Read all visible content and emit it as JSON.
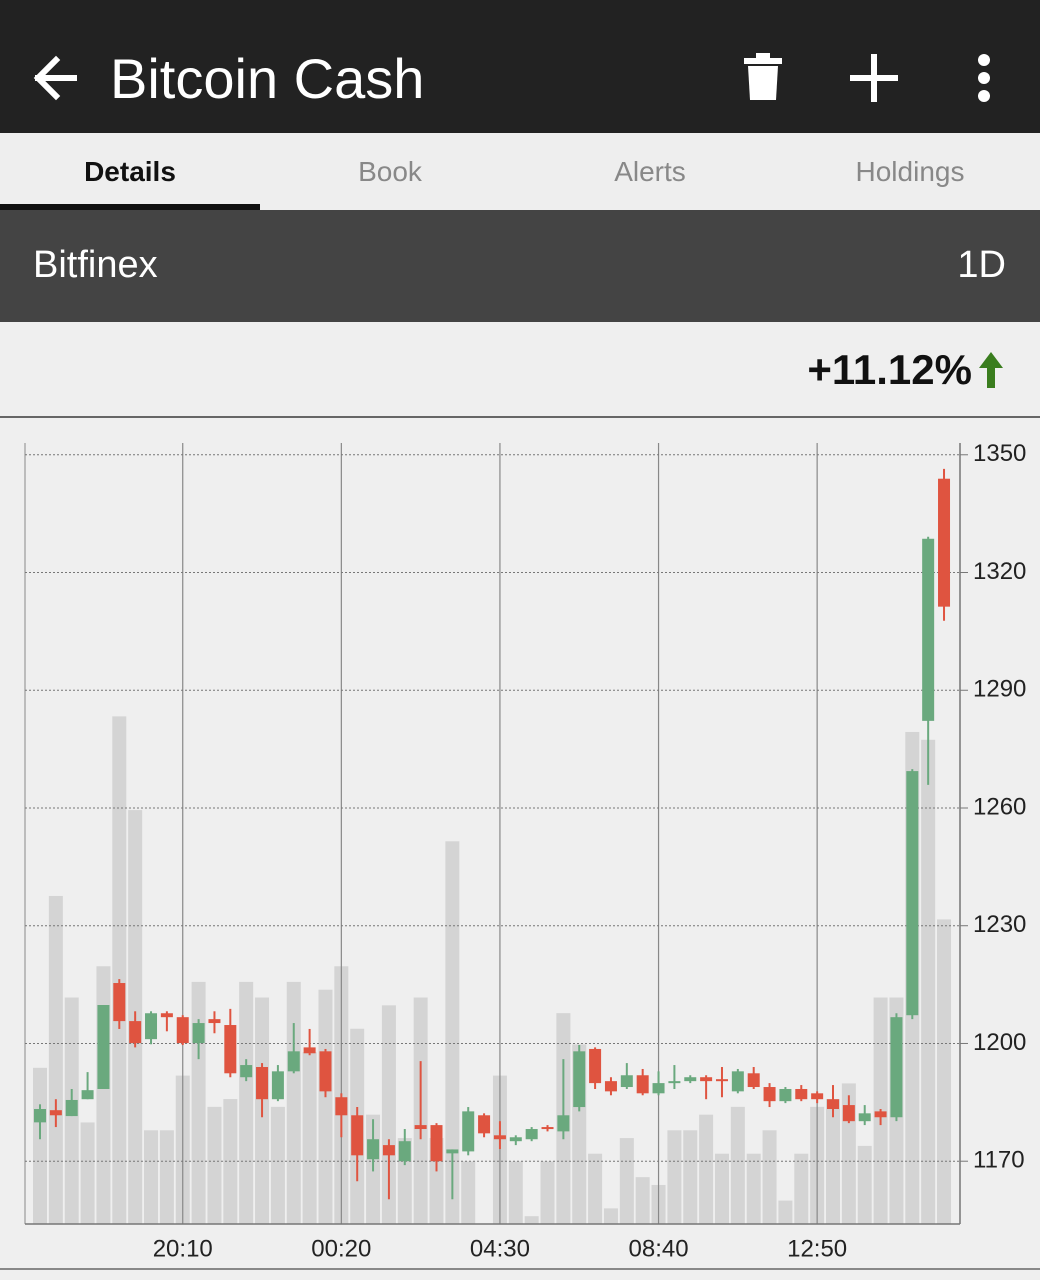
{
  "header": {
    "title": "Bitcoin Cash"
  },
  "tabs": [
    "Details",
    "Book",
    "Alerts",
    "Holdings"
  ],
  "exchange": "Bitfinex",
  "period": "1D",
  "change": "+11.12%",
  "chart_data": {
    "type": "candlestick",
    "categories": [
      null,
      null,
      null,
      null,
      null,
      null,
      null,
      null,
      null,
      "20:10",
      null,
      null,
      null,
      null,
      null,
      null,
      null,
      null,
      null,
      "00:20",
      null,
      null,
      null,
      null,
      null,
      null,
      null,
      null,
      null,
      "04:30",
      null,
      null,
      null,
      null,
      null,
      null,
      null,
      null,
      null,
      "08:40",
      null,
      null,
      null,
      null,
      null,
      null,
      null,
      null,
      null,
      "12:50",
      null,
      null,
      null,
      null,
      null,
      null,
      null,
      null
    ],
    "open": [
      1179.9,
      1183,
      1181.5,
      1185.8,
      1188.4,
      1215.4,
      1205.7,
      1201.1,
      1207.7,
      1206.7,
      1200.1,
      1206.2,
      1204.7,
      1191.4,
      1194,
      1185.8,
      1192.9,
      1199,
      1198,
      1186.3,
      1181.7,
      1170.5,
      1174.1,
      1170,
      1179.2,
      1179.2,
      1172,
      1172.5,
      1181.7,
      1176.6,
      1175.1,
      1175.6,
      1178.7,
      1177.6,
      1183.8,
      1198.6,
      1190.4,
      1188.9,
      1191.9,
      1187.3,
      1189.9,
      1190.4,
      1191.4,
      1190.9,
      1187.8,
      1192.4,
      1188.9,
      1185.3,
      1188.4,
      1187.3,
      1185.8,
      1184.3,
      1180.2,
      1182.7,
      1181.2,
      1207.2,
      1282.2,
      1343.9
    ],
    "high": [
      1184.5,
      1185.8,
      1188.4,
      1192.7,
      1209.8,
      1216.4,
      1208.2,
      1208.2,
      1208.2,
      1207.2,
      1206.2,
      1208.2,
      1208.8,
      1196,
      1195,
      1194.5,
      1205.2,
      1203.7,
      1198.6,
      1187.3,
      1183.8,
      1180.7,
      1175.6,
      1178.2,
      1195.5,
      1179.7,
      1173,
      1183.8,
      1182.2,
      1180.2,
      1176.6,
      1178.7,
      1179.2,
      1196,
      1199.6,
      1199,
      1191.4,
      1195,
      1193.5,
      1192.9,
      1194.5,
      1191.9,
      1191.9,
      1194,
      1193.5,
      1194,
      1189.9,
      1188.9,
      1189.4,
      1187.8,
      1189.4,
      1186.8,
      1184.3,
      1183.3,
      1207.7,
      1269.9,
      1329.1,
      1346.4
    ],
    "low": [
      1175.6,
      1178.7,
      1181.5,
      1185.8,
      1188.4,
      1203.7,
      1199,
      1199.8,
      1203.1,
      1199.6,
      1196,
      1202.6,
      1191.4,
      1190.4,
      1181.2,
      1185.3,
      1192.4,
      1197,
      1186.3,
      1176.1,
      1164.9,
      1167.4,
      1160.3,
      1169,
      1175.6,
      1167.4,
      1160.3,
      1171.5,
      1176.1,
      1173.1,
      1174.1,
      1175.1,
      1177.6,
      1175.6,
      1182.7,
      1188.4,
      1186.8,
      1188.4,
      1186.8,
      1186.8,
      1188.4,
      1189.9,
      1185.8,
      1186.3,
      1187.3,
      1188.4,
      1183.8,
      1184.8,
      1185.3,
      1184.8,
      1181.2,
      1179.7,
      1179.2,
      1179.2,
      1180.2,
      1206.2,
      1265.9,
      1307.7
    ],
    "close": [
      1183.3,
      1181.7,
      1185.6,
      1188.1,
      1209.8,
      1205.7,
      1200.1,
      1207.7,
      1206.7,
      1200.1,
      1205.2,
      1205.2,
      1192.4,
      1194.5,
      1185.8,
      1192.9,
      1198,
      1197.5,
      1187.8,
      1181.7,
      1171.5,
      1175.6,
      1171.5,
      1175.1,
      1178.2,
      1170,
      1173,
      1182.7,
      1177.1,
      1175.6,
      1176.1,
      1178.2,
      1178.2,
      1181.7,
      1198,
      1189.9,
      1187.8,
      1191.9,
      1187.3,
      1189.9,
      1190.4,
      1191.4,
      1190.4,
      1190.4,
      1192.9,
      1188.9,
      1185.3,
      1188.4,
      1185.8,
      1185.8,
      1183.3,
      1180.2,
      1182.2,
      1181.2,
      1206.7,
      1269.4,
      1328.6,
      1311.3
    ],
    "up_color": "#6aa97e",
    "down_color": "#df5440",
    "volume": {
      "axis": "y2",
      "color": "#d4d4d4",
      "values": [
        20,
        42,
        29,
        13,
        33,
        65,
        53,
        12,
        12,
        19,
        31,
        15,
        16,
        31,
        29,
        15,
        31,
        22,
        30,
        33,
        25,
        14,
        28,
        11,
        29,
        11,
        49,
        8,
        0,
        19,
        8,
        1,
        8,
        27,
        23,
        9,
        2,
        11,
        6,
        5,
        12,
        12,
        14,
        9,
        15,
        9,
        12,
        3,
        9,
        15,
        16,
        18,
        10,
        29,
        29,
        63,
        62,
        39
      ]
    },
    "ylim": [
      1154,
      1353
    ],
    "yticks": [
      1170,
      1200,
      1230,
      1260,
      1290,
      1320,
      1350
    ],
    "y2lim": [
      0,
      100
    ],
    "grid": true
  }
}
